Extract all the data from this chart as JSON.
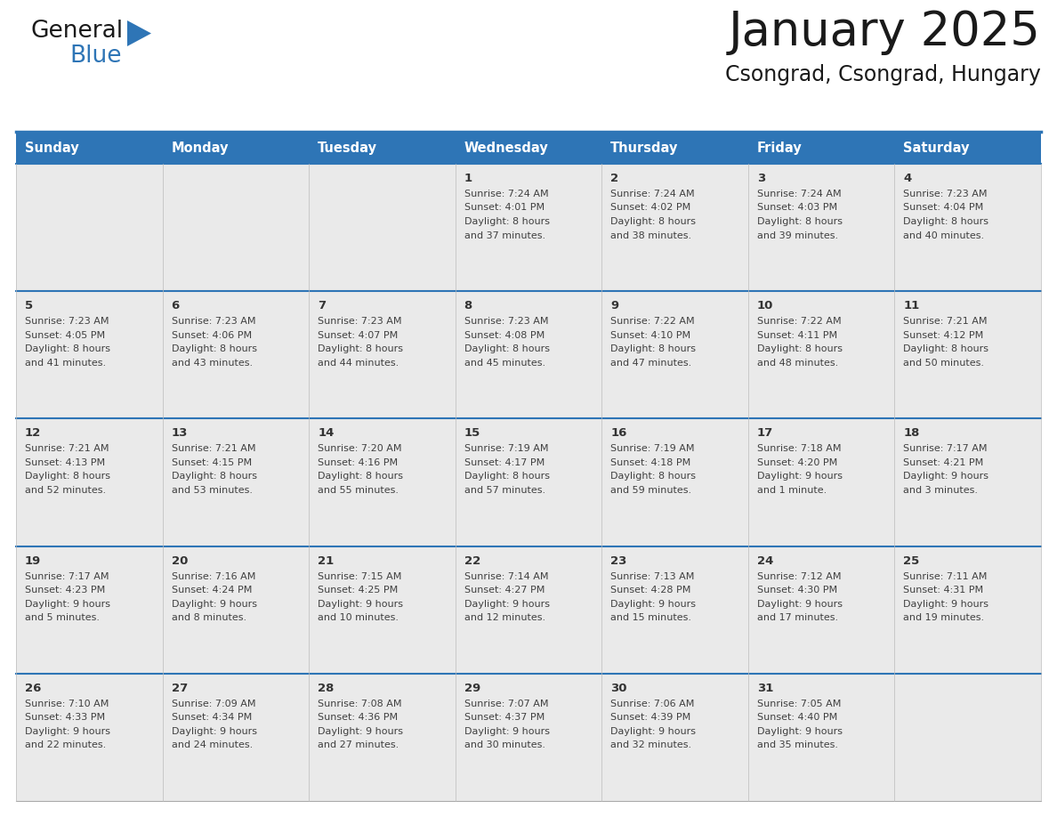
{
  "title": "January 2025",
  "subtitle": "Csongrad, Csongrad, Hungary",
  "header_bg": "#2E75B6",
  "header_text_color": "#FFFFFF",
  "cell_bg": "#EAEAEA",
  "border_color": "#2E75B6",
  "row_border_color": "#2E75B6",
  "text_color": "#404040",
  "day_num_color": "#333333",
  "day_headers": [
    "Sunday",
    "Monday",
    "Tuesday",
    "Wednesday",
    "Thursday",
    "Friday",
    "Saturday"
  ],
  "days": [
    {
      "day": 1,
      "col": 3,
      "row": 0,
      "sunrise": "7:24 AM",
      "sunset": "4:01 PM",
      "daylight": "8 hours",
      "daylight2": "and 37 minutes."
    },
    {
      "day": 2,
      "col": 4,
      "row": 0,
      "sunrise": "7:24 AM",
      "sunset": "4:02 PM",
      "daylight": "8 hours",
      "daylight2": "and 38 minutes."
    },
    {
      "day": 3,
      "col": 5,
      "row": 0,
      "sunrise": "7:24 AM",
      "sunset": "4:03 PM",
      "daylight": "8 hours",
      "daylight2": "and 39 minutes."
    },
    {
      "day": 4,
      "col": 6,
      "row": 0,
      "sunrise": "7:23 AM",
      "sunset": "4:04 PM",
      "daylight": "8 hours",
      "daylight2": "and 40 minutes."
    },
    {
      "day": 5,
      "col": 0,
      "row": 1,
      "sunrise": "7:23 AM",
      "sunset": "4:05 PM",
      "daylight": "8 hours",
      "daylight2": "and 41 minutes."
    },
    {
      "day": 6,
      "col": 1,
      "row": 1,
      "sunrise": "7:23 AM",
      "sunset": "4:06 PM",
      "daylight": "8 hours",
      "daylight2": "and 43 minutes."
    },
    {
      "day": 7,
      "col": 2,
      "row": 1,
      "sunrise": "7:23 AM",
      "sunset": "4:07 PM",
      "daylight": "8 hours",
      "daylight2": "and 44 minutes."
    },
    {
      "day": 8,
      "col": 3,
      "row": 1,
      "sunrise": "7:23 AM",
      "sunset": "4:08 PM",
      "daylight": "8 hours",
      "daylight2": "and 45 minutes."
    },
    {
      "day": 9,
      "col": 4,
      "row": 1,
      "sunrise": "7:22 AM",
      "sunset": "4:10 PM",
      "daylight": "8 hours",
      "daylight2": "and 47 minutes."
    },
    {
      "day": 10,
      "col": 5,
      "row": 1,
      "sunrise": "7:22 AM",
      "sunset": "4:11 PM",
      "daylight": "8 hours",
      "daylight2": "and 48 minutes."
    },
    {
      "day": 11,
      "col": 6,
      "row": 1,
      "sunrise": "7:21 AM",
      "sunset": "4:12 PM",
      "daylight": "8 hours",
      "daylight2": "and 50 minutes."
    },
    {
      "day": 12,
      "col": 0,
      "row": 2,
      "sunrise": "7:21 AM",
      "sunset": "4:13 PM",
      "daylight": "8 hours",
      "daylight2": "and 52 minutes."
    },
    {
      "day": 13,
      "col": 1,
      "row": 2,
      "sunrise": "7:21 AM",
      "sunset": "4:15 PM",
      "daylight": "8 hours",
      "daylight2": "and 53 minutes."
    },
    {
      "day": 14,
      "col": 2,
      "row": 2,
      "sunrise": "7:20 AM",
      "sunset": "4:16 PM",
      "daylight": "8 hours",
      "daylight2": "and 55 minutes."
    },
    {
      "day": 15,
      "col": 3,
      "row": 2,
      "sunrise": "7:19 AM",
      "sunset": "4:17 PM",
      "daylight": "8 hours",
      "daylight2": "and 57 minutes."
    },
    {
      "day": 16,
      "col": 4,
      "row": 2,
      "sunrise": "7:19 AM",
      "sunset": "4:18 PM",
      "daylight": "8 hours",
      "daylight2": "and 59 minutes."
    },
    {
      "day": 17,
      "col": 5,
      "row": 2,
      "sunrise": "7:18 AM",
      "sunset": "4:20 PM",
      "daylight": "9 hours",
      "daylight2": "and 1 minute."
    },
    {
      "day": 18,
      "col": 6,
      "row": 2,
      "sunrise": "7:17 AM",
      "sunset": "4:21 PM",
      "daylight": "9 hours",
      "daylight2": "and 3 minutes."
    },
    {
      "day": 19,
      "col": 0,
      "row": 3,
      "sunrise": "7:17 AM",
      "sunset": "4:23 PM",
      "daylight": "9 hours",
      "daylight2": "and 5 minutes."
    },
    {
      "day": 20,
      "col": 1,
      "row": 3,
      "sunrise": "7:16 AM",
      "sunset": "4:24 PM",
      "daylight": "9 hours",
      "daylight2": "and 8 minutes."
    },
    {
      "day": 21,
      "col": 2,
      "row": 3,
      "sunrise": "7:15 AM",
      "sunset": "4:25 PM",
      "daylight": "9 hours",
      "daylight2": "and 10 minutes."
    },
    {
      "day": 22,
      "col": 3,
      "row": 3,
      "sunrise": "7:14 AM",
      "sunset": "4:27 PM",
      "daylight": "9 hours",
      "daylight2": "and 12 minutes."
    },
    {
      "day": 23,
      "col": 4,
      "row": 3,
      "sunrise": "7:13 AM",
      "sunset": "4:28 PM",
      "daylight": "9 hours",
      "daylight2": "and 15 minutes."
    },
    {
      "day": 24,
      "col": 5,
      "row": 3,
      "sunrise": "7:12 AM",
      "sunset": "4:30 PM",
      "daylight": "9 hours",
      "daylight2": "and 17 minutes."
    },
    {
      "day": 25,
      "col": 6,
      "row": 3,
      "sunrise": "7:11 AM",
      "sunset": "4:31 PM",
      "daylight": "9 hours",
      "daylight2": "and 19 minutes."
    },
    {
      "day": 26,
      "col": 0,
      "row": 4,
      "sunrise": "7:10 AM",
      "sunset": "4:33 PM",
      "daylight": "9 hours",
      "daylight2": "and 22 minutes."
    },
    {
      "day": 27,
      "col": 1,
      "row": 4,
      "sunrise": "7:09 AM",
      "sunset": "4:34 PM",
      "daylight": "9 hours",
      "daylight2": "and 24 minutes."
    },
    {
      "day": 28,
      "col": 2,
      "row": 4,
      "sunrise": "7:08 AM",
      "sunset": "4:36 PM",
      "daylight": "9 hours",
      "daylight2": "and 27 minutes."
    },
    {
      "day": 29,
      "col": 3,
      "row": 4,
      "sunrise": "7:07 AM",
      "sunset": "4:37 PM",
      "daylight": "9 hours",
      "daylight2": "and 30 minutes."
    },
    {
      "day": 30,
      "col": 4,
      "row": 4,
      "sunrise": "7:06 AM",
      "sunset": "4:39 PM",
      "daylight": "9 hours",
      "daylight2": "and 32 minutes."
    },
    {
      "day": 31,
      "col": 5,
      "row": 4,
      "sunrise": "7:05 AM",
      "sunset": "4:40 PM",
      "daylight": "9 hours",
      "daylight2": "and 35 minutes."
    }
  ],
  "num_rows": 5,
  "num_cols": 7,
  "logo_text_general": "General",
  "logo_text_blue": "Blue",
  "logo_triangle_color": "#2E75B6",
  "logo_general_color": "#1a1a1a"
}
